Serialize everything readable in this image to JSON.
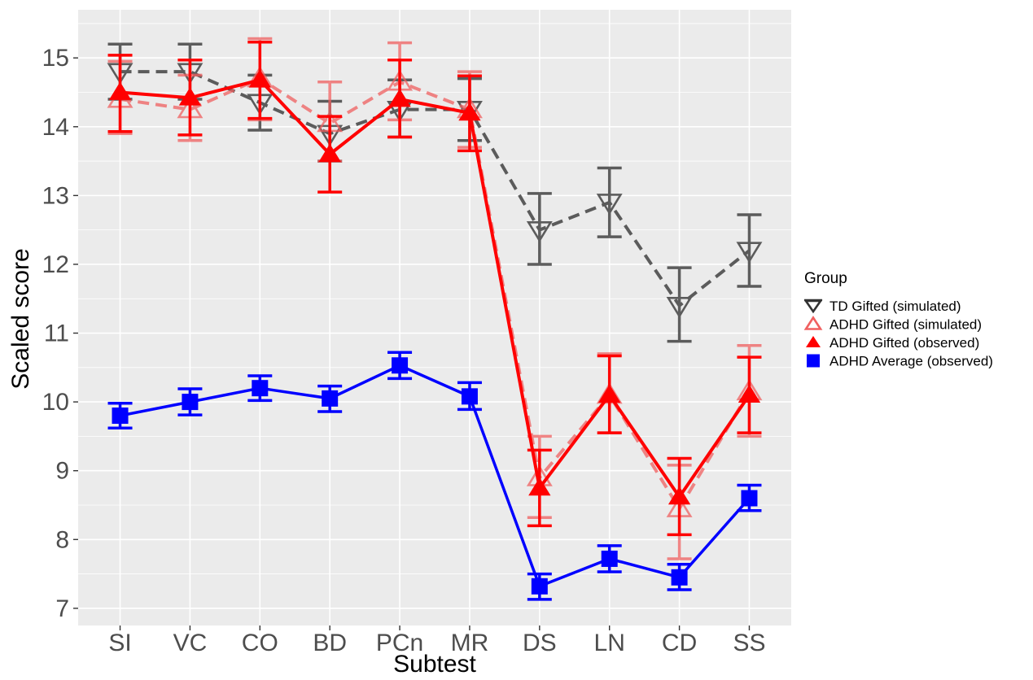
{
  "chart_data": {
    "type": "line",
    "xlabel": "Subtest",
    "ylabel": "Scaled score",
    "categories": [
      "SI",
      "VC",
      "CO",
      "BD",
      "PCn",
      "MR",
      "DS",
      "LN",
      "CD",
      "SS"
    ],
    "ylim": [
      6.75,
      15.7
    ],
    "yticks": [
      7,
      8,
      9,
      10,
      11,
      12,
      13,
      14,
      15
    ],
    "grid": true,
    "legend": {
      "title": "Group",
      "placement": "right",
      "entries": [
        "TD Gifted (simulated)",
        "ADHD Gifted (simulated)",
        "ADHD Gifted (observed)",
        "ADHD Average (observed)"
      ]
    },
    "series": [
      {
        "name": "TD Gifted (simulated)",
        "color": "#333333",
        "line": "dashed",
        "marker": "triangle-down-open",
        "values": [
          14.8,
          14.8,
          14.35,
          13.9,
          14.25,
          14.25,
          12.5,
          12.9,
          11.4,
          12.2
        ],
        "error_low": [
          14.4,
          14.4,
          13.95,
          13.5,
          13.85,
          13.8,
          12.0,
          12.4,
          10.88,
          11.68
        ],
        "error_high": [
          15.2,
          15.2,
          14.75,
          14.37,
          14.68,
          14.7,
          13.03,
          13.4,
          11.95,
          12.72
        ]
      },
      {
        "name": "ADHD Gifted (simulated)",
        "color": "#f06060",
        "line": "dashed",
        "marker": "triangle-up-open",
        "values": [
          14.4,
          14.25,
          14.7,
          14.05,
          14.65,
          14.25,
          8.9,
          10.1,
          8.45,
          10.15
        ],
        "error_low": [
          13.9,
          13.8,
          14.1,
          13.5,
          14.1,
          13.7,
          8.32,
          9.55,
          7.72,
          9.5
        ],
        "error_high": [
          14.95,
          14.75,
          15.28,
          14.65,
          15.22,
          14.8,
          9.5,
          10.7,
          9.08,
          10.82
        ]
      },
      {
        "name": "ADHD Gifted (observed)",
        "color": "#ff0000",
        "line": "solid",
        "marker": "triangle-up-filled",
        "values": [
          14.5,
          14.42,
          14.68,
          13.6,
          14.4,
          14.2,
          8.75,
          10.1,
          8.62,
          10.1
        ],
        "error_low": [
          13.93,
          13.88,
          14.12,
          13.05,
          13.85,
          13.65,
          8.2,
          9.55,
          8.07,
          9.55
        ],
        "error_high": [
          15.04,
          14.97,
          15.23,
          14.15,
          14.97,
          14.74,
          9.3,
          10.67,
          9.18,
          10.65
        ]
      },
      {
        "name": "ADHD Average (observed)",
        "color": "#0000ff",
        "line": "solid",
        "marker": "square-filled",
        "values": [
          9.8,
          10.0,
          10.2,
          10.05,
          10.53,
          10.08,
          7.32,
          7.72,
          7.45,
          8.6
        ],
        "error_low": [
          9.62,
          9.81,
          10.02,
          9.86,
          10.34,
          9.89,
          7.13,
          7.53,
          7.27,
          8.42
        ],
        "error_high": [
          9.98,
          10.19,
          10.38,
          10.23,
          10.72,
          10.28,
          7.5,
          7.91,
          7.64,
          8.79
        ]
      }
    ]
  }
}
